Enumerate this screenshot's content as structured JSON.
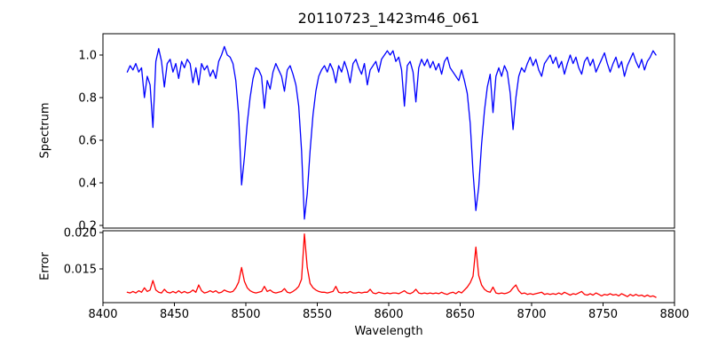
{
  "figure": {
    "background_color": "#ffffff",
    "text_color": "#000000",
    "spine_color": "#000000"
  },
  "chart_data": {
    "type": "line",
    "title": "20110723_1423m46_061",
    "xlabel": "Wavelength",
    "xlim": [
      8400,
      8800
    ],
    "xticks": [
      8400,
      8450,
      8500,
      8550,
      8600,
      8650,
      8700,
      8750,
      8800
    ],
    "xtick_labels": [
      "8400",
      "8450",
      "8500",
      "8550",
      "8600",
      "8650",
      "8700",
      "8750",
      "8800"
    ],
    "grid": false,
    "legend": null,
    "x": [
      8417,
      8419,
      8421,
      8423,
      8425,
      8427,
      8429,
      8431,
      8433,
      8435,
      8437,
      8439,
      8441,
      8443,
      8445,
      8447,
      8449,
      8451,
      8453,
      8455,
      8457,
      8459,
      8461,
      8463,
      8465,
      8467,
      8469,
      8471,
      8473,
      8475,
      8477,
      8479,
      8481,
      8483,
      8485,
      8487,
      8489,
      8491,
      8493,
      8495,
      8497,
      8499,
      8501,
      8503,
      8505,
      8507,
      8509,
      8511,
      8513,
      8515,
      8517,
      8519,
      8521,
      8523,
      8525,
      8527,
      8529,
      8531,
      8533,
      8535,
      8537,
      8539,
      8541,
      8543,
      8545,
      8547,
      8549,
      8551,
      8553,
      8555,
      8557,
      8559,
      8561,
      8563,
      8565,
      8567,
      8569,
      8571,
      8573,
      8575,
      8577,
      8579,
      8581,
      8583,
      8585,
      8587,
      8589,
      8591,
      8593,
      8595,
      8597,
      8599,
      8601,
      8603,
      8605,
      8607,
      8609,
      8611,
      8613,
      8615,
      8617,
      8619,
      8621,
      8623,
      8625,
      8627,
      8629,
      8631,
      8633,
      8635,
      8637,
      8639,
      8641,
      8643,
      8645,
      8647,
      8649,
      8651,
      8653,
      8655,
      8657,
      8659,
      8661,
      8663,
      8665,
      8667,
      8669,
      8671,
      8673,
      8675,
      8677,
      8679,
      8681,
      8683,
      8685,
      8687,
      8689,
      8691,
      8693,
      8695,
      8697,
      8699,
      8701,
      8703,
      8705,
      8707,
      8709,
      8711,
      8713,
      8715,
      8717,
      8719,
      8721,
      8723,
      8725,
      8727,
      8729,
      8731,
      8733,
      8735,
      8737,
      8739,
      8741,
      8743,
      8745,
      8747,
      8749,
      8751,
      8753,
      8755,
      8757,
      8759,
      8761,
      8763,
      8765,
      8767,
      8769,
      8771,
      8773,
      8775,
      8777,
      8779,
      8781,
      8783,
      8785,
      8787
    ],
    "panels": [
      {
        "name": "spectrum",
        "ylabel": "Spectrum",
        "line_color": "#0000ff",
        "ylim": [
          0.1875,
          1.1
        ],
        "yticks": [
          1.0,
          0.8,
          0.6,
          0.4,
          0.2
        ],
        "ytick_labels": [
          "1.0",
          "0.8",
          "0.6",
          "0.4",
          "0.2"
        ],
        "absorption_line_centers": [
          8435,
          8498,
          8542,
          8662,
          8687
        ],
        "y": [
          0.92,
          0.95,
          0.93,
          0.96,
          0.92,
          0.94,
          0.8,
          0.9,
          0.86,
          0.66,
          0.97,
          1.03,
          0.97,
          0.85,
          0.96,
          0.98,
          0.92,
          0.96,
          0.89,
          0.97,
          0.94,
          0.98,
          0.96,
          0.87,
          0.94,
          0.86,
          0.96,
          0.93,
          0.95,
          0.9,
          0.93,
          0.89,
          0.97,
          1.0,
          1.04,
          1.0,
          0.99,
          0.96,
          0.88,
          0.72,
          0.39,
          0.52,
          0.68,
          0.8,
          0.89,
          0.94,
          0.93,
          0.9,
          0.75,
          0.88,
          0.84,
          0.92,
          0.96,
          0.93,
          0.9,
          0.83,
          0.93,
          0.95,
          0.91,
          0.86,
          0.76,
          0.55,
          0.23,
          0.35,
          0.55,
          0.72,
          0.83,
          0.9,
          0.93,
          0.95,
          0.92,
          0.96,
          0.93,
          0.87,
          0.95,
          0.92,
          0.97,
          0.93,
          0.87,
          0.96,
          0.98,
          0.94,
          0.91,
          0.96,
          0.86,
          0.93,
          0.95,
          0.97,
          0.92,
          0.98,
          1.0,
          1.02,
          1.0,
          1.02,
          0.97,
          0.99,
          0.93,
          0.76,
          0.95,
          0.97,
          0.92,
          0.78,
          0.94,
          0.98,
          0.95,
          0.98,
          0.94,
          0.97,
          0.93,
          0.96,
          0.91,
          0.97,
          0.99,
          0.94,
          0.92,
          0.9,
          0.88,
          0.93,
          0.88,
          0.82,
          0.68,
          0.45,
          0.27,
          0.38,
          0.58,
          0.74,
          0.85,
          0.91,
          0.73,
          0.9,
          0.94,
          0.9,
          0.95,
          0.92,
          0.82,
          0.65,
          0.8,
          0.9,
          0.94,
          0.92,
          0.96,
          0.99,
          0.95,
          0.98,
          0.93,
          0.9,
          0.96,
          0.98,
          1.0,
          0.96,
          0.99,
          0.94,
          0.97,
          0.91,
          0.96,
          1.0,
          0.96,
          0.99,
          0.94,
          0.91,
          0.97,
          0.99,
          0.95,
          0.98,
          0.92,
          0.95,
          0.98,
          1.01,
          0.96,
          0.92,
          0.96,
          0.99,
          0.94,
          0.97,
          0.9,
          0.95,
          0.98,
          1.01,
          0.97,
          0.94,
          0.98,
          0.93,
          0.97,
          0.99,
          1.02,
          1.0
        ]
      },
      {
        "name": "error",
        "ylabel": "Error",
        "line_color": "#ff0000",
        "ylim": [
          0.01037,
          0.02024
        ],
        "yticks": [
          0.02,
          0.015
        ],
        "ytick_labels": [
          "0.020",
          "0.015"
        ],
        "peak_centers": [
          8498,
          8542,
          8662
        ],
        "y": [
          0.0118,
          0.0117,
          0.0119,
          0.0117,
          0.012,
          0.0118,
          0.0124,
          0.0119,
          0.0121,
          0.0134,
          0.0121,
          0.0118,
          0.0117,
          0.0122,
          0.0118,
          0.0117,
          0.0119,
          0.0117,
          0.012,
          0.0117,
          0.0119,
          0.0117,
          0.0118,
          0.0121,
          0.0118,
          0.0128,
          0.012,
          0.0117,
          0.0118,
          0.012,
          0.0118,
          0.012,
          0.0117,
          0.0118,
          0.0121,
          0.0119,
          0.0118,
          0.0119,
          0.0124,
          0.0132,
          0.0152,
          0.0133,
          0.0124,
          0.012,
          0.0118,
          0.0117,
          0.0118,
          0.0119,
          0.0126,
          0.0119,
          0.0121,
          0.0118,
          0.0117,
          0.0118,
          0.0119,
          0.0123,
          0.0118,
          0.0117,
          0.0119,
          0.0122,
          0.0126,
          0.0136,
          0.0198,
          0.0152,
          0.013,
          0.0124,
          0.0121,
          0.0119,
          0.0118,
          0.0118,
          0.0117,
          0.0118,
          0.0119,
          0.0126,
          0.0118,
          0.0117,
          0.0118,
          0.0117,
          0.0119,
          0.0117,
          0.0117,
          0.0118,
          0.0117,
          0.0118,
          0.0118,
          0.0122,
          0.0117,
          0.0116,
          0.0118,
          0.0117,
          0.0116,
          0.0117,
          0.0116,
          0.0117,
          0.0117,
          0.0116,
          0.0118,
          0.012,
          0.0117,
          0.0116,
          0.0118,
          0.0122,
          0.0117,
          0.0116,
          0.0117,
          0.0116,
          0.0117,
          0.0116,
          0.0117,
          0.0116,
          0.0118,
          0.0116,
          0.0115,
          0.0117,
          0.0118,
          0.0116,
          0.0119,
          0.0117,
          0.0121,
          0.0125,
          0.0131,
          0.014,
          0.018,
          0.0141,
          0.0128,
          0.0122,
          0.0119,
          0.0118,
          0.0125,
          0.0117,
          0.0116,
          0.0117,
          0.0116,
          0.0117,
          0.0119,
          0.0124,
          0.0128,
          0.012,
          0.0116,
          0.0117,
          0.0115,
          0.0116,
          0.0115,
          0.0116,
          0.0117,
          0.0118,
          0.0115,
          0.0116,
          0.0115,
          0.0116,
          0.0115,
          0.0117,
          0.0115,
          0.0118,
          0.0116,
          0.0114,
          0.0116,
          0.0115,
          0.0117,
          0.0119,
          0.0115,
          0.0114,
          0.0116,
          0.0114,
          0.0117,
          0.0115,
          0.0113,
          0.0115,
          0.0114,
          0.0116,
          0.0114,
          0.0115,
          0.0113,
          0.0116,
          0.0114,
          0.0112,
          0.0115,
          0.0113,
          0.0115,
          0.0113,
          0.0114,
          0.0112,
          0.0114,
          0.0112,
          0.0113,
          0.0111
        ]
      }
    ]
  }
}
